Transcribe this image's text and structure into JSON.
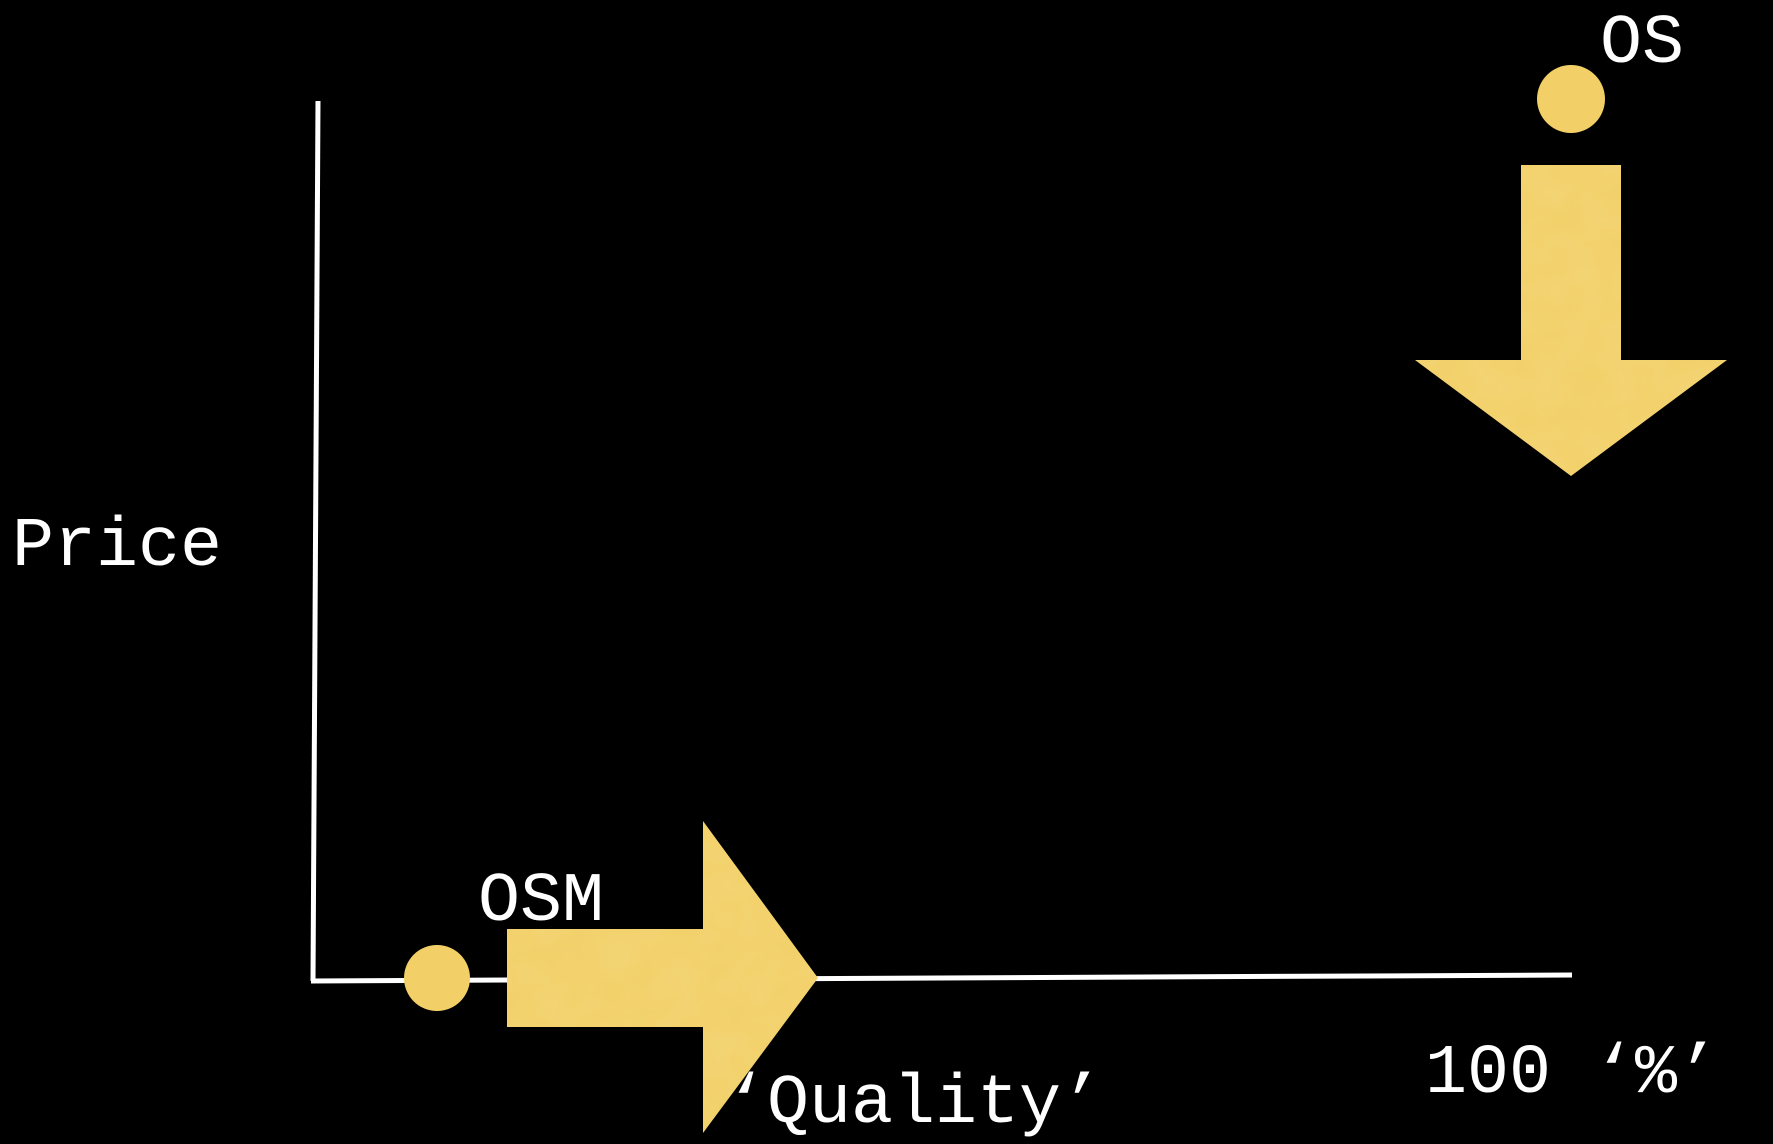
{
  "labels": {
    "y_axis": "Price",
    "x_axis": "‘Quality’",
    "x_axis_end": "100 ‘%’",
    "point_low": "OSM",
    "point_high": "OS"
  },
  "colors": {
    "background": "#000000",
    "axes": "#ffffff",
    "marker": "#f2d067",
    "text": "#ffffff"
  },
  "arrows": {
    "from_low_point": "right",
    "from_high_point": "down"
  }
}
